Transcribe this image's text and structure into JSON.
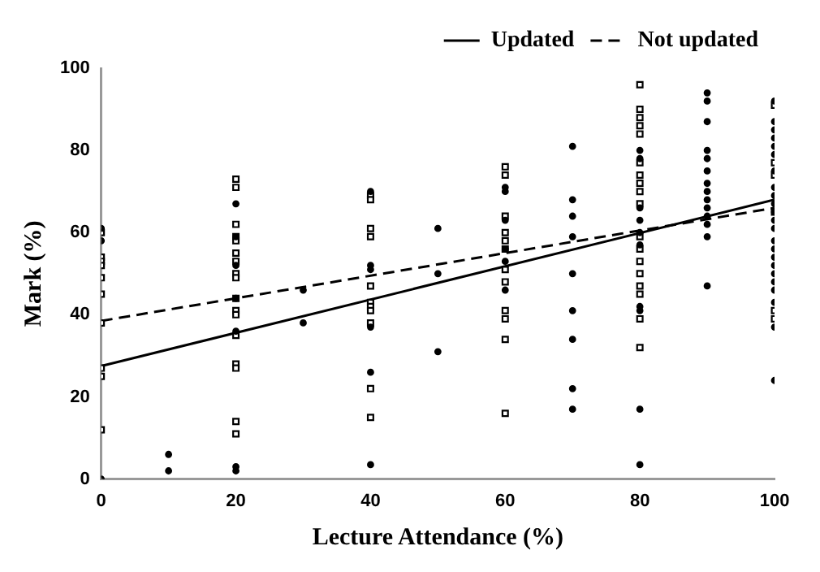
{
  "chart_data": {
    "type": "scatter",
    "xlabel": "Lecture Attendance (%)",
    "ylabel": "Mark (%)",
    "xlim": [
      0,
      100
    ],
    "xticks": [
      0,
      20,
      40,
      60,
      80,
      100
    ],
    "ylim": [
      0,
      100
    ],
    "yticks": [
      0,
      20,
      40,
      60,
      80,
      100
    ],
    "grid": false,
    "legend": "top right",
    "series": [
      {
        "type": "scatter",
        "marker": "circle",
        "color": "#000000",
        "x": [
          0,
          0,
          0,
          10,
          10,
          20,
          20,
          20,
          20,
          20,
          20,
          20,
          30,
          30,
          40,
          40,
          40,
          40,
          40,
          40,
          50,
          50,
          50,
          60,
          60,
          60,
          60,
          60,
          60,
          70,
          70,
          70,
          70,
          70,
          70,
          70,
          70,
          70,
          80,
          80,
          80,
          80,
          80,
          80,
          80,
          80,
          80,
          80,
          90,
          90,
          90,
          90,
          90,
          90,
          90,
          90,
          90,
          90,
          90,
          90,
          90,
          90,
          100,
          100,
          100,
          100,
          100,
          100,
          100,
          100,
          100,
          100,
          100,
          100,
          100,
          100,
          100,
          100,
          100,
          100,
          100,
          100,
          100,
          100,
          100
        ],
        "values": [
          61,
          58,
          0,
          6,
          2,
          67,
          59,
          52,
          44,
          36,
          3,
          2,
          46,
          38,
          70,
          52,
          51,
          37,
          26,
          3.5,
          61,
          50,
          31,
          71,
          70,
          63,
          56,
          53,
          46,
          81,
          68,
          64,
          59,
          50,
          41,
          34,
          22,
          17,
          80,
          78,
          66,
          63,
          60,
          57,
          42,
          41,
          17,
          3.5,
          94,
          92,
          87,
          80,
          78,
          75,
          72,
          70,
          68,
          66,
          64,
          62,
          59,
          47,
          92,
          87,
          85,
          83,
          81,
          79,
          75,
          71,
          69,
          67,
          65,
          63,
          61,
          58,
          56,
          54,
          52,
          50,
          48,
          46,
          43,
          37,
          24
        ]
      },
      {
        "type": "scatter",
        "marker": "square",
        "color": "#000000",
        "x": [
          0,
          0,
          0,
          0,
          0,
          0,
          0,
          0,
          0,
          0,
          20,
          20,
          20,
          20,
          20,
          20,
          20,
          20,
          20,
          20,
          20,
          20,
          20,
          20,
          20,
          20,
          20,
          40,
          40,
          40,
          40,
          40,
          40,
          40,
          40,
          40,
          40,
          40,
          60,
          60,
          60,
          60,
          60,
          60,
          60,
          60,
          60,
          60,
          60,
          60,
          80,
          80,
          80,
          80,
          80,
          80,
          80,
          80,
          80,
          80,
          80,
          80,
          80,
          80,
          80,
          80,
          80,
          80,
          100,
          100,
          100,
          100,
          100,
          100
        ],
        "values": [
          60,
          54,
          53,
          52,
          49,
          45,
          38,
          27,
          25,
          12,
          73,
          71,
          62,
          59,
          58,
          55,
          53,
          50,
          49,
          44,
          41,
          40,
          35,
          28,
          27,
          14,
          11,
          69,
          68,
          61,
          59,
          47,
          43,
          42,
          41,
          38,
          22,
          15,
          76,
          74,
          64,
          60,
          58,
          56,
          51,
          48,
          41,
          39,
          34,
          16,
          96,
          90,
          88,
          86,
          84,
          77,
          74,
          72,
          70,
          67,
          59,
          56,
          53,
          50,
          47,
          45,
          39,
          32,
          91,
          77,
          74,
          65,
          41,
          39
        ]
      },
      {
        "type": "line",
        "name": "Updated",
        "marker": "none",
        "line_style": "solid",
        "color": "#000000",
        "x": [
          0,
          100
        ],
        "values": [
          27.5,
          68
        ]
      },
      {
        "type": "line",
        "name": "Not updated",
        "marker": "none",
        "line_style": "dashed",
        "color": "#000000",
        "x": [
          0,
          100
        ],
        "values": [
          38.5,
          66
        ]
      }
    ]
  }
}
